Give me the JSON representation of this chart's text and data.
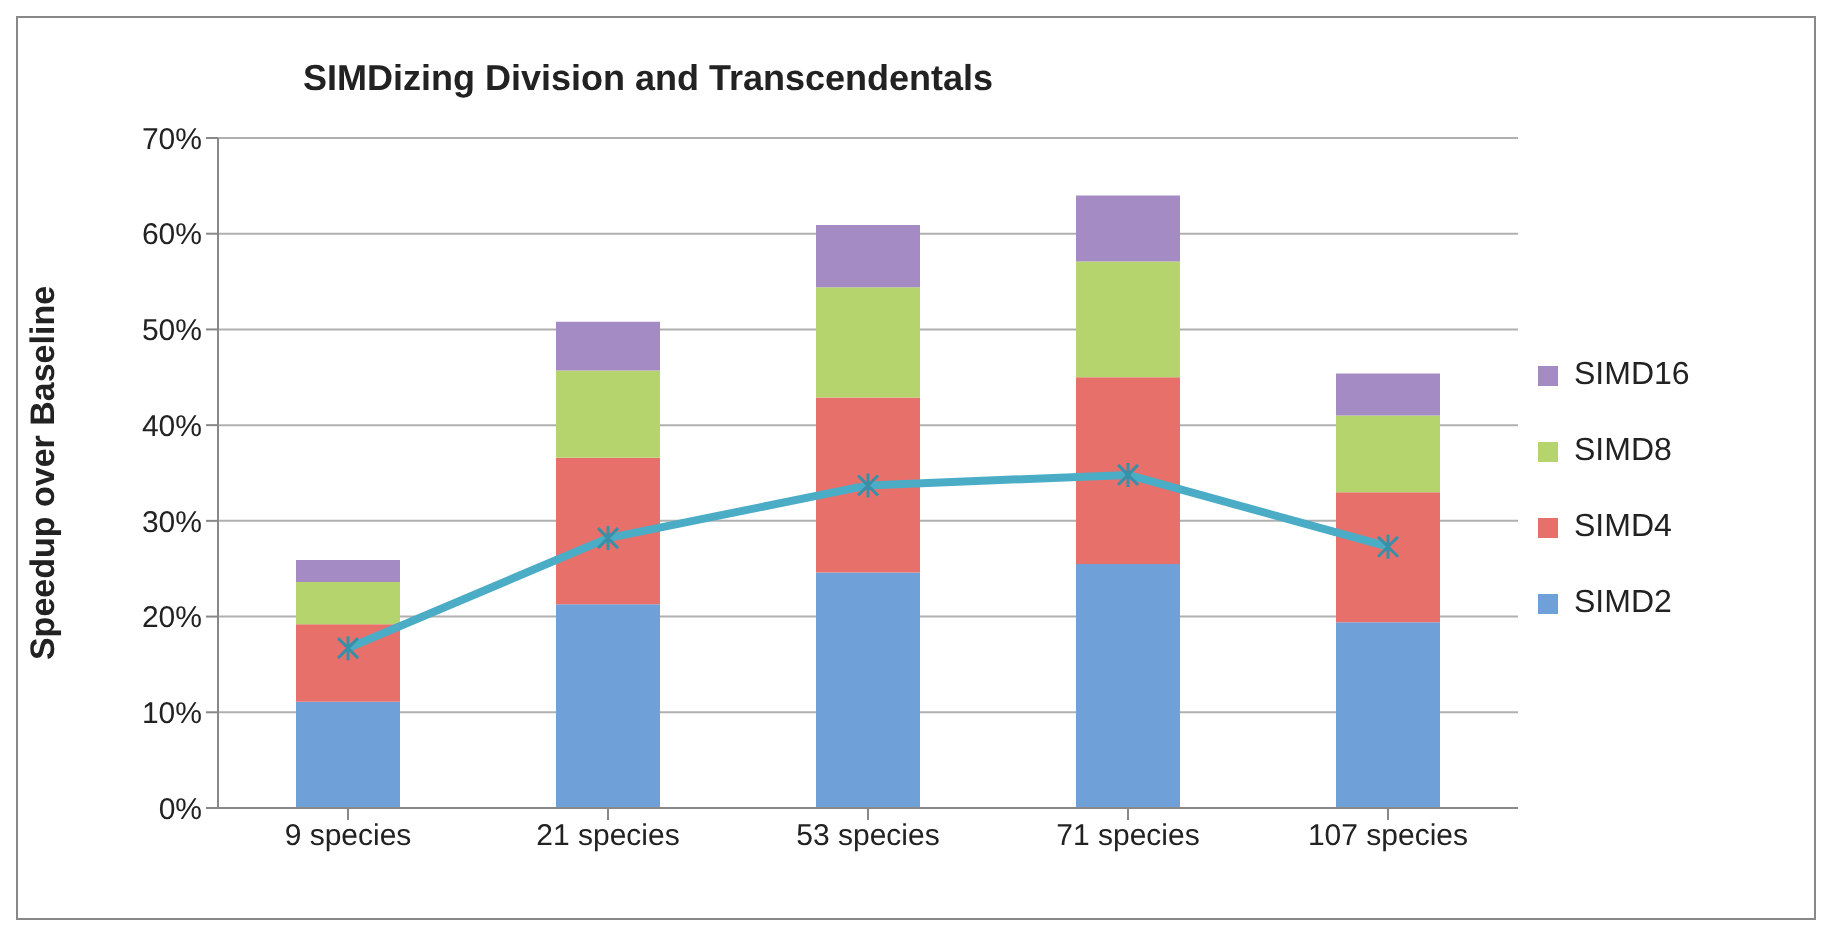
{
  "chart_data": {
    "type": "bar",
    "title": "SIMDizing Division and Transcendentals",
    "ylabel": "Speedup over Baseline",
    "categories": [
      "9 species",
      "21 species",
      "53 species",
      "71 species",
      "107 species"
    ],
    "stacked": true,
    "ylim": [
      0,
      70
    ],
    "yticks": [
      {
        "value": 0,
        "label": "0%"
      },
      {
        "value": 10,
        "label": "10%"
      },
      {
        "value": 20,
        "label": "20%"
      },
      {
        "value": 30,
        "label": "30%"
      },
      {
        "value": 40,
        "label": "40%"
      },
      {
        "value": 50,
        "label": "50%"
      },
      {
        "value": 60,
        "label": "60%"
      },
      {
        "value": 70,
        "label": "70%"
      }
    ],
    "grid": "y",
    "legend": "right",
    "marker": "cross",
    "line_style": "solid",
    "series": [
      {
        "name": "SIMD2",
        "color": "#6fa0d8",
        "values": [
          11.1,
          21.3,
          24.6,
          25.5,
          19.4
        ]
      },
      {
        "name": "SIMD4",
        "color": "#e8706a",
        "values": [
          8.1,
          15.3,
          18.3,
          19.5,
          13.6
        ]
      },
      {
        "name": "SIMD8",
        "color": "#b5d46e",
        "values": [
          4.4,
          9.1,
          11.5,
          12.1,
          8.0
        ]
      },
      {
        "name": "SIMD16",
        "color": "#a58bc4",
        "values": [
          2.3,
          5.1,
          6.5,
          6.9,
          4.4
        ]
      },
      {
        "type": "line",
        "color": "#4bacc6",
        "values": [
          16.7,
          28.2,
          33.7,
          34.8,
          27.3
        ]
      }
    ]
  }
}
